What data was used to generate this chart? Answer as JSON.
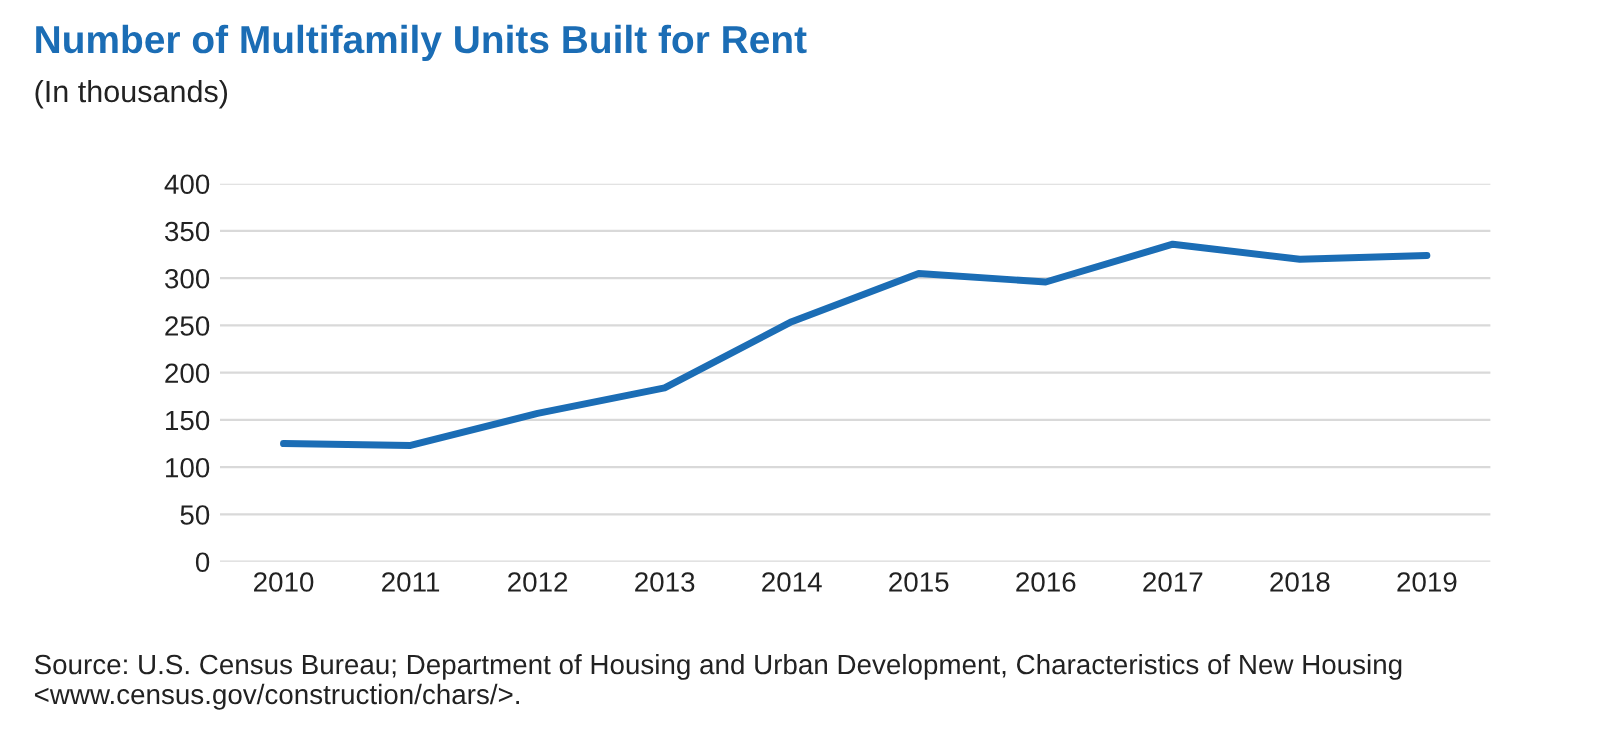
{
  "chart_data": {
    "type": "line",
    "title": "Number of Multifamily Units Built for Rent",
    "subtitle": "(In thousands)",
    "categories": [
      "2010",
      "2011",
      "2012",
      "2013",
      "2014",
      "2015",
      "2016",
      "2017",
      "2018",
      "2019"
    ],
    "series": [
      {
        "color": "#1b6db5",
        "values": [
          125,
          123,
          157,
          184,
          254,
          305,
          296,
          336,
          320,
          324
        ]
      }
    ],
    "ylim": [
      0,
      400
    ],
    "yticks": [
      0,
      50,
      100,
      150,
      200,
      250,
      300,
      350,
      400
    ],
    "grid": "y",
    "legend": false,
    "marker": "none",
    "line_style": "solid",
    "annotations": [
      "Source: U.S. Census Bureau; Department of Housing and Urban Development, Characteristics of New Housing <www.census.gov/construction/chars/>."
    ]
  }
}
